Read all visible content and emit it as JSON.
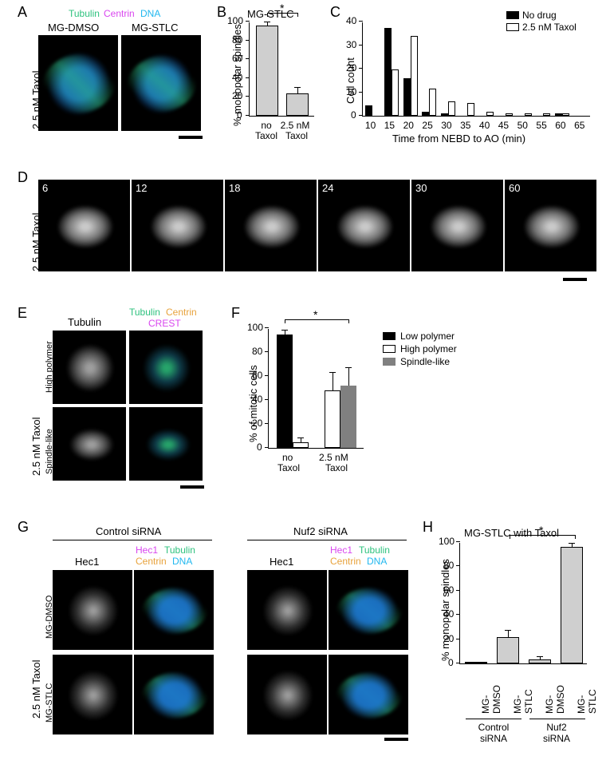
{
  "panelA": {
    "label": "A",
    "channels": [
      {
        "text": "Tubulin",
        "color": "#2ec27e"
      },
      {
        "text": "Centrin",
        "color": "#d946ef"
      },
      {
        "text": "DNA",
        "color": "#22b8ef"
      }
    ],
    "side_label": "2.5 nM Taxol",
    "cols": [
      "MG-DMSO",
      "MG-STLC"
    ]
  },
  "panelB": {
    "label": "B",
    "title": "MG-STLC",
    "ylabel": "% monopolar spindles",
    "yticks": [
      0,
      20,
      40,
      60,
      80,
      100
    ],
    "bars": [
      {
        "label_top": "no",
        "label_bot": "Taxol",
        "value": 96,
        "err_up": 3,
        "fill": "#cfcfcf"
      },
      {
        "label_top": "2.5 nM",
        "label_bot": "Taxol",
        "value": 24,
        "err_up": 6,
        "fill": "#cfcfcf"
      }
    ],
    "sig": "*"
  },
  "panelC": {
    "label": "C",
    "ylabel": "Cell count",
    "xlabel": "Time from NEBD to AO (min)",
    "xticks": [
      10,
      15,
      20,
      25,
      30,
      35,
      40,
      45,
      50,
      55,
      60,
      65
    ],
    "yticks": [
      0,
      10,
      20,
      30,
      40
    ],
    "legend": [
      {
        "text": "No drug",
        "fill": "#000000"
      },
      {
        "text": "2.5 nM Taxol",
        "fill": "#ffffff",
        "stroke": "#000000"
      }
    ],
    "series": {
      "black": [
        5,
        42,
        18,
        2,
        1,
        0,
        0,
        0,
        0,
        0,
        1,
        0
      ],
      "white": [
        0,
        22,
        38,
        13,
        7,
        6,
        2,
        1,
        1,
        1,
        1,
        0
      ]
    }
  },
  "panelD": {
    "label": "D",
    "side_label": "2.5 nM Taxol",
    "timepoints": [
      "6",
      "12",
      "18",
      "24",
      "30",
      "60"
    ]
  },
  "panelE": {
    "label": "E",
    "side_label": "2.5 nM Taxol",
    "row_labels": [
      "High polymer",
      "Spindle-like"
    ],
    "col1_header": "Tubulin",
    "channels": [
      {
        "text": "Tubulin",
        "color": "#2ec27e"
      },
      {
        "text": "Centrin",
        "color": "#e8a33d"
      },
      {
        "text": "CREST",
        "color": "#d946ef"
      }
    ]
  },
  "panelF": {
    "label": "F",
    "ylabel": "% of mitotic cells",
    "yticks": [
      0,
      20,
      40,
      60,
      80,
      100
    ],
    "legend": [
      {
        "text": "Low polymer",
        "fill": "#000000"
      },
      {
        "text": "High polymer",
        "fill": "#ffffff",
        "stroke": "#000"
      },
      {
        "text": "Spindle-like",
        "fill": "#808080"
      }
    ],
    "groups": [
      {
        "label_top": "no",
        "label_bot": "Taxol",
        "vals": [
          {
            "v": 95,
            "e": 3,
            "f": "#000"
          },
          {
            "v": 5,
            "e": 3,
            "f": "#fff",
            "s": "#000"
          }
        ]
      },
      {
        "label_top": "2.5 nM",
        "label_bot": "Taxol",
        "vals": [
          {
            "v": 48,
            "e": 15,
            "f": "#fff",
            "s": "#000"
          },
          {
            "v": 52,
            "e": 15,
            "f": "#808080"
          }
        ]
      }
    ],
    "sig": "*"
  },
  "panelG": {
    "label": "G",
    "side_label": "2.5 nM Taxol",
    "row_labels": [
      "MG-DMSO",
      "MG-STLC"
    ],
    "group_headers": [
      "Control siRNA",
      "Nuf2 siRNA"
    ],
    "col1_header": "Hec1",
    "channels": [
      {
        "text": "Hec1",
        "color": "#d946ef"
      },
      {
        "text": "Tubulin",
        "color": "#2ec27e"
      },
      {
        "text": "Centrin",
        "color": "#e8a33d"
      },
      {
        "text": "DNA",
        "color": "#22b8ef"
      }
    ]
  },
  "panelH": {
    "label": "H",
    "title": "MG-STLC with Taxol",
    "ylabel": "% monopolar spindles",
    "yticks": [
      0,
      20,
      40,
      60,
      80,
      100
    ],
    "bars": [
      {
        "lab": "MG-\nDMSO",
        "v": 0,
        "e": 0,
        "f": "#cfcfcf"
      },
      {
        "lab": "MG-\nSTLC",
        "v": 22,
        "e": 5,
        "f": "#cfcfcf"
      },
      {
        "lab": "MG-\nDMSO",
        "v": 3,
        "e": 2,
        "f": "#cfcfcf"
      },
      {
        "lab": "MG-\nSTLC",
        "v": 96,
        "e": 3,
        "f": "#cfcfcf"
      }
    ],
    "group_labels": [
      "Control\nsiRNA",
      "Nuf2\nsiRNA"
    ],
    "sig": "*"
  }
}
